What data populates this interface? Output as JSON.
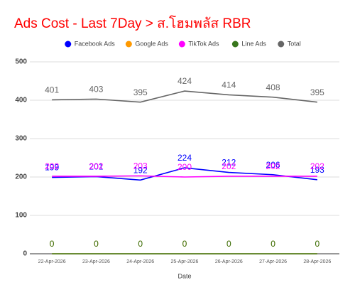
{
  "chart_data": {
    "type": "line",
    "title": "Ads Cost - Last 7Day > ส.โฮมพลัส RBR",
    "x_label": "Date",
    "categories": [
      "22-Apr-2026",
      "23-Apr-2026",
      "24-Apr-2026",
      "25-Apr-2026",
      "26-Apr-2026",
      "27-Apr-2026",
      "28-Apr-2026"
    ],
    "series": [
      {
        "name": "Facebook Ads",
        "color": "#0000ff",
        "values": [
          199,
          201,
          192,
          224,
          212,
          206,
          193
        ]
      },
      {
        "name": "Google Ads",
        "color": "#ff9900",
        "values": [
          0,
          0,
          0,
          0,
          0,
          0,
          0
        ]
      },
      {
        "name": "TikTok Ads",
        "color": "#ff00ff",
        "values": [
          202,
          202,
          203,
          200,
          202,
          202,
          202
        ]
      },
      {
        "name": "Line Ads",
        "color": "#38761d",
        "values": [
          0,
          0,
          0,
          0,
          0,
          0,
          0
        ]
      },
      {
        "name": "Total",
        "color": "#666666",
        "values": [
          401,
          403,
          395,
          424,
          414,
          408,
          395
        ]
      }
    ],
    "ylim": [
      0,
      500
    ],
    "yticks": [
      0,
      100,
      200,
      300,
      400,
      500
    ],
    "grid": true,
    "legend": "top"
  }
}
